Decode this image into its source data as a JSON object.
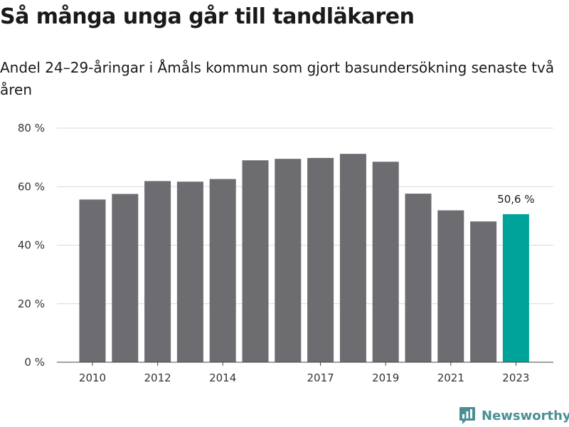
{
  "title": "Så många unga går till tandläkaren",
  "subtitle": "Andel 24–29-åringar i Åmåls kommun som gjort basundersökning senaste två åren",
  "brand": {
    "name": "Newsworthy",
    "icon": "newsworthy-logo-icon",
    "color": "#4a8f95"
  },
  "colors": {
    "bar": "#6d6c71",
    "highlight": "#00a39a",
    "grid": "#d9d9d9",
    "axis": "#444444"
  },
  "chart_data": {
    "type": "bar",
    "title": "Så många unga går till tandläkaren",
    "subtitle": "Andel 24–29-åringar i Åmåls kommun som gjort basundersökning senaste två åren",
    "categories": [
      "2010",
      "2011",
      "2012",
      "2013",
      "2014",
      "2015",
      "2016",
      "2017",
      "2018",
      "2019",
      "2020",
      "2021",
      "2022",
      "2023"
    ],
    "values": [
      55.6,
      57.5,
      61.9,
      61.7,
      62.6,
      69.0,
      69.5,
      69.8,
      71.2,
      68.5,
      57.6,
      51.9,
      48.1,
      50.6
    ],
    "x_tick_labels": [
      "2010",
      "2012",
      "2014",
      "2017",
      "2019",
      "2021",
      "2023"
    ],
    "y_tick_labels": [
      "0 %",
      "20 %",
      "40 %",
      "60 %",
      "80 %"
    ],
    "y_ticks": [
      0,
      20,
      40,
      60,
      80
    ],
    "ylim": [
      0,
      80
    ],
    "highlight_index": 13,
    "data_label": {
      "category": "2023",
      "text": "50,6 %"
    },
    "grid": true,
    "legend": false,
    "xlabel": "",
    "ylabel": ""
  }
}
